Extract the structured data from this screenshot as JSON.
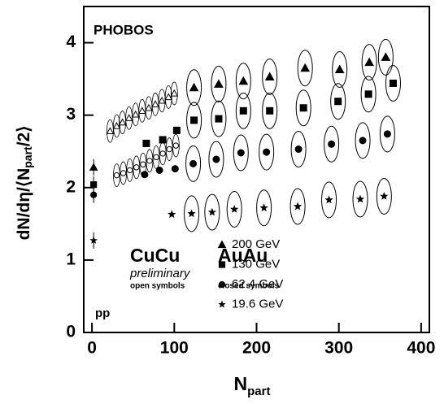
{
  "chart_data": {
    "type": "scatter",
    "ylabel": [
      "dN/dη/⟨N",
      "part",
      "/2⟩"
    ],
    "xlabel": [
      "N",
      "part"
    ],
    "xlim": [
      -10,
      410
    ],
    "ylim": [
      0,
      4.5
    ],
    "xticks": [
      0,
      100,
      200,
      300,
      400
    ],
    "yticks": [
      0,
      1,
      2,
      3,
      4
    ],
    "annotations": {
      "experiment": "PHOBOS",
      "cucu": "CuCu",
      "preliminary": "preliminary",
      "open": "open symbols",
      "auau": "AuAu",
      "closed": "closed symbols",
      "pp": "pp"
    },
    "color": "#000000",
    "series": [
      {
        "name": "200 GeV",
        "marker": "triangle",
        "x": [
          124,
          154,
          184,
          216,
          259,
          301,
          337,
          357
        ],
        "values": [
          3.38,
          3.43,
          3.47,
          3.53,
          3.65,
          3.63,
          3.73,
          3.8
        ],
        "cucu_x": [
          22,
          30,
          37,
          45,
          53,
          61,
          69,
          77,
          85,
          93,
          100
        ],
        "cucu_values": [
          2.78,
          2.85,
          2.9,
          2.96,
          3.01,
          3.06,
          3.1,
          3.15,
          3.2,
          3.25,
          3.3
        ],
        "pp_x": 2,
        "pp_value": 2.28
      },
      {
        "name": "130 GeV",
        "marker": "square",
        "x": [
          66,
          86,
          103,
          124,
          154,
          184,
          216,
          257,
          299,
          336,
          366
        ],
        "values": [
          2.61,
          2.66,
          2.79,
          2.93,
          2.95,
          3.06,
          3.06,
          3.1,
          3.19,
          3.29,
          3.44
        ],
        "pp_x": 2,
        "pp_value": 2.04
      },
      {
        "name": "62.4 GeV",
        "marker": "circle",
        "x": [
          64,
          82,
          101,
          123,
          151,
          181,
          212,
          251,
          291,
          329,
          359
        ],
        "values": [
          2.18,
          2.24,
          2.26,
          2.33,
          2.39,
          2.48,
          2.49,
          2.53,
          2.6,
          2.65,
          2.74
        ],
        "cucu_x": [
          30,
          38,
          46,
          54,
          62,
          70,
          78,
          86,
          94,
          102
        ],
        "cucu_values": [
          2.17,
          2.2,
          2.24,
          2.28,
          2.32,
          2.37,
          2.42,
          2.47,
          2.53,
          2.58
        ],
        "pp_x": 2,
        "pp_value": 1.9
      },
      {
        "name": "19.6 GeV",
        "marker": "star",
        "x": [
          97,
          121,
          146,
          173,
          209,
          250,
          288,
          326,
          355
        ],
        "values": [
          1.63,
          1.64,
          1.66,
          1.7,
          1.72,
          1.74,
          1.83,
          1.84,
          1.88
        ],
        "pp_x": 2,
        "pp_value": 1.27
      }
    ]
  }
}
